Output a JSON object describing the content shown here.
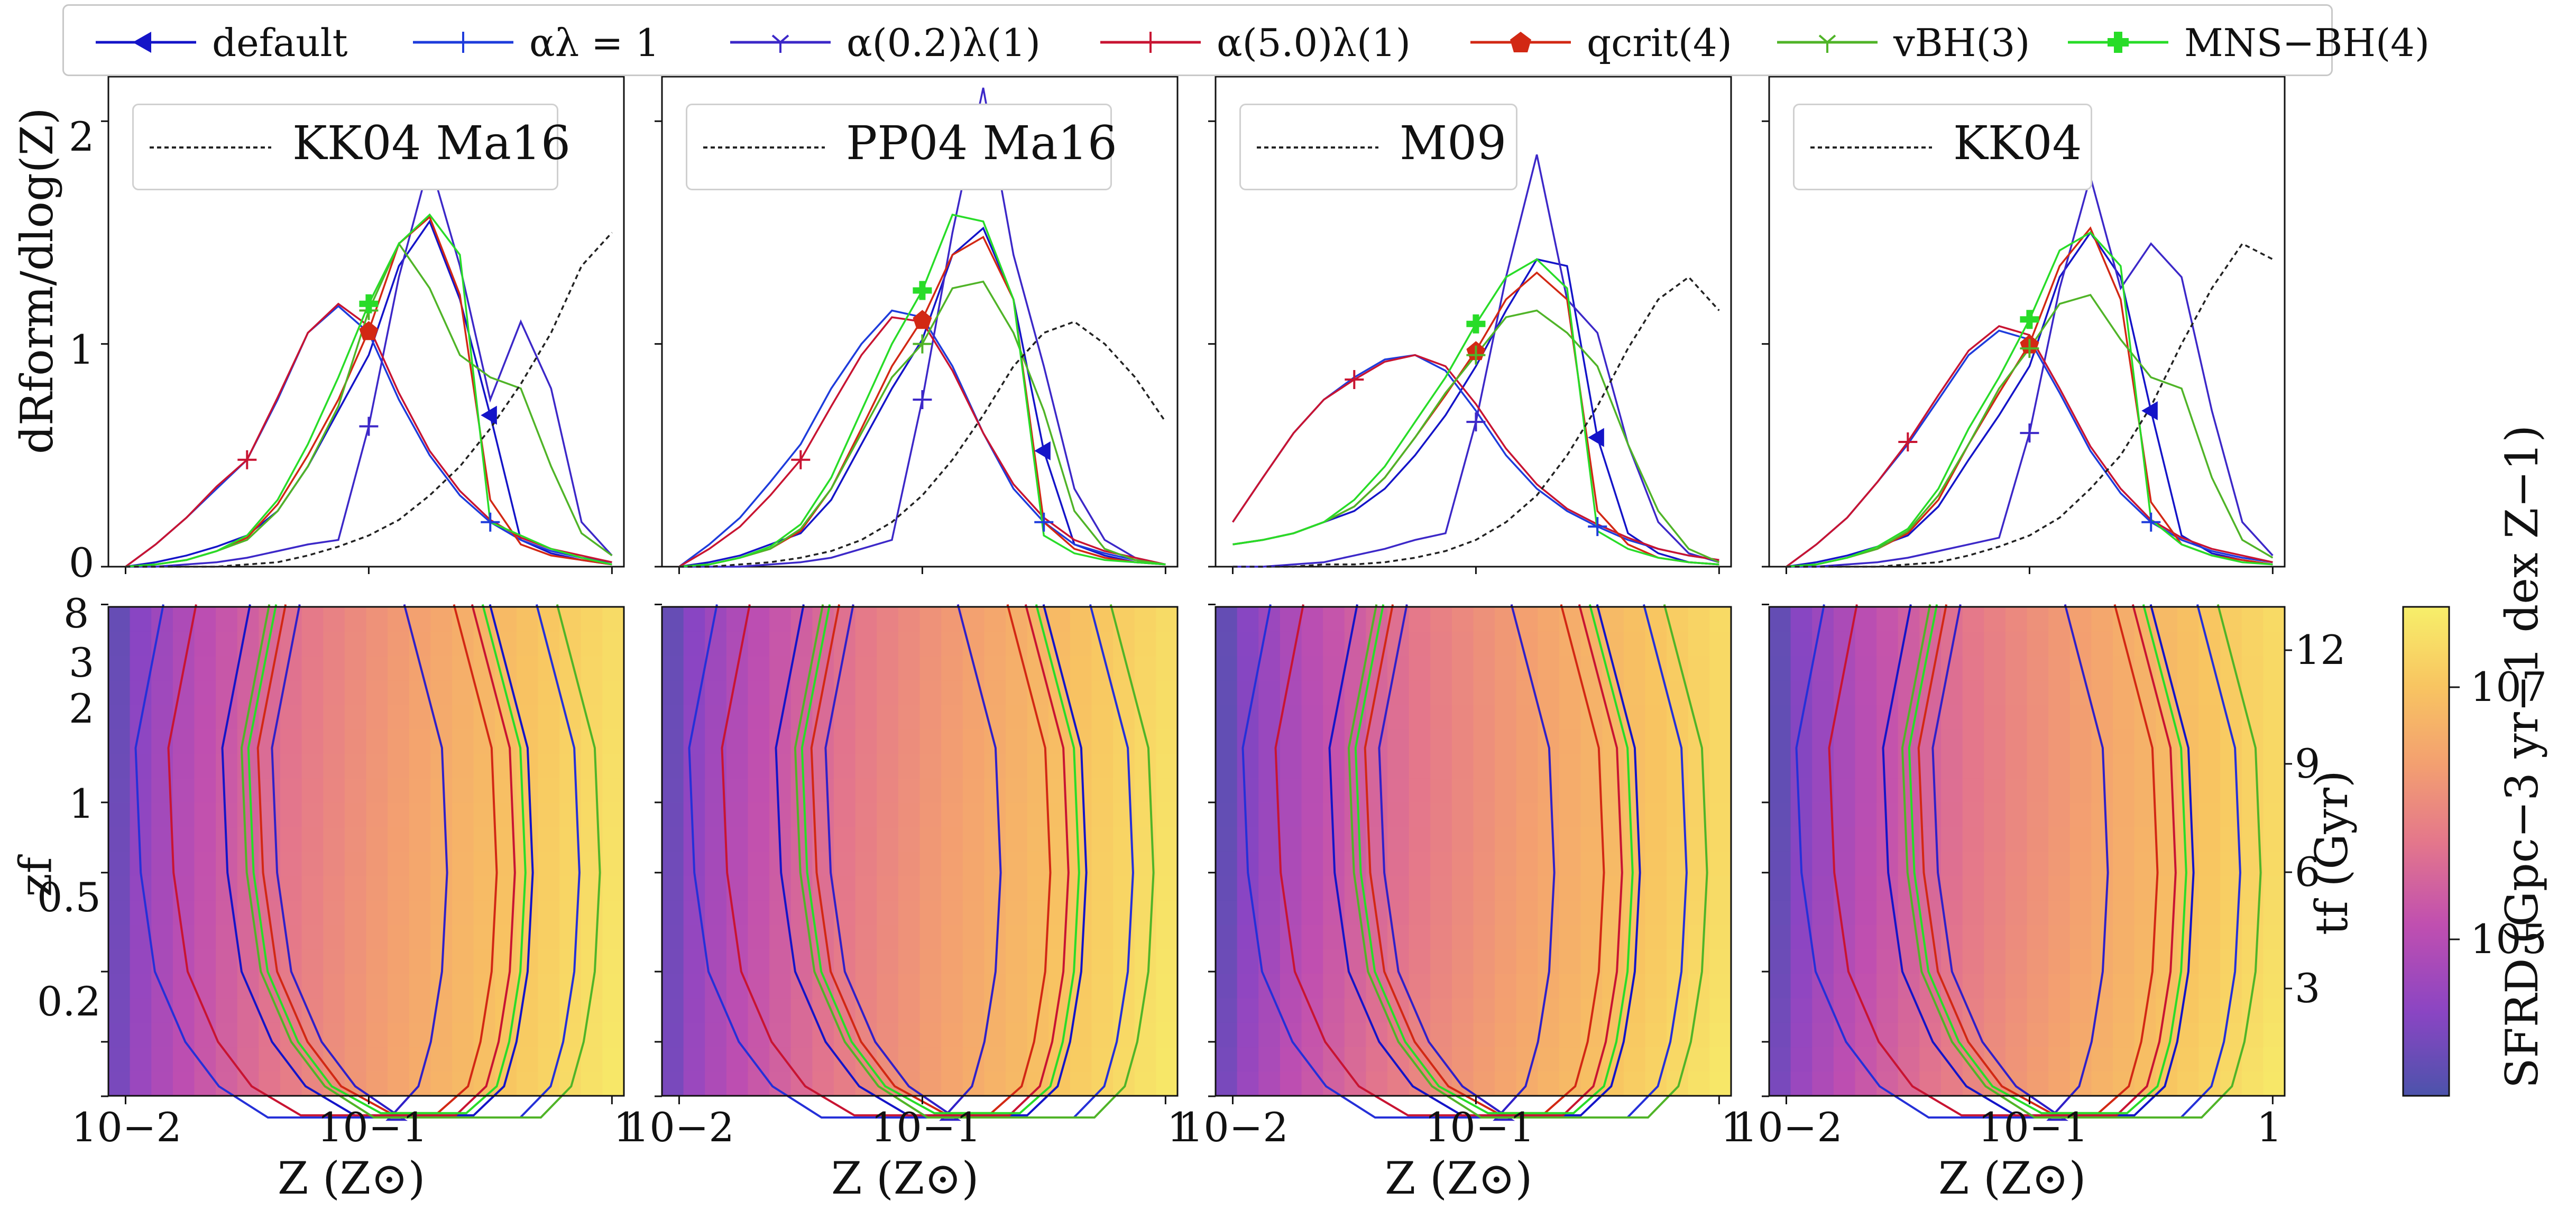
{
  "legend": {
    "items": [
      {
        "label": "default",
        "color": "#1414c8",
        "marker": "triangle-left"
      },
      {
        "label": "αλ = 1",
        "color": "#1e3cdc",
        "marker": "plus"
      },
      {
        "label": "α(0.2)λ(1)",
        "color": "#3c28c8",
        "marker": "tri-down"
      },
      {
        "label": "α(5.0)λ(1)",
        "color": "#c81432",
        "marker": "plus"
      },
      {
        "label": "qcrit(4)",
        "color": "#d22814",
        "marker": "pentagon"
      },
      {
        "label": "vBH(3)",
        "color": "#50b428",
        "marker": "tri-down"
      },
      {
        "label": "MNS−BH(4)",
        "color": "#28dc28",
        "marker": "plus-filled"
      }
    ]
  },
  "axes": {
    "top_ylabel": "dRform/dlog(Z)",
    "bottom_ylabel": "zf",
    "right_ylabel": "tf (Gyr)",
    "xlabel": "Z (Z⊙)",
    "colorbar_label": "SFRD (Gpc−3 yr−1 dex Z−1)",
    "top_yticks": [
      "0",
      "1",
      "2"
    ],
    "bottom_yticks": [
      "8",
      "3",
      "2",
      "1",
      "0.5",
      "0.2"
    ],
    "right_yticks": [
      "12",
      "9",
      "6",
      "3"
    ],
    "xticks": [
      "10−2",
      "10−1",
      "1"
    ],
    "colorbar_ticks": [
      "107",
      "105"
    ]
  },
  "panels": [
    {
      "name": "KK04_Ma16",
      "panel_label": "KK04 Ma16"
    },
    {
      "name": "PP04_Ma16",
      "panel_label": "PP04 Ma16"
    },
    {
      "name": "M09",
      "panel_label": "M09"
    },
    {
      "name": "KK04",
      "panel_label": "KK04"
    }
  ],
  "colors": {
    "cmap": [
      "#4c53ab",
      "#8a45c3",
      "#c04fb0",
      "#e4778b",
      "#f3a070",
      "#f8c561",
      "#f7ef6a"
    ],
    "dashed": "#222222"
  },
  "chart_data": {
    "type": "line",
    "xscale": "log",
    "xlim": [
      0.0085,
      1.12
    ],
    "top_ylim": [
      0,
      2.2
    ],
    "bottom_ylim_log1pz": [
      0.08,
      0.95
    ],
    "x": [
      0.01,
      0.0133,
      0.0178,
      0.0237,
      0.0316,
      0.0422,
      0.0562,
      0.075,
      0.1,
      0.133,
      0.178,
      0.237,
      0.316,
      0.422,
      0.562,
      0.75,
      1.0
    ],
    "marker_x": [
      0.32,
      0.32,
      0.1,
      0.032,
      0.1,
      0.1,
      0.1
    ],
    "panels": [
      {
        "name": "KK04 Ma16",
        "series": [
          {
            "name": "default",
            "values": [
              0,
              0.02,
              0.05,
              0.09,
              0.14,
              0.25,
              0.45,
              0.7,
              0.95,
              1.35,
              1.55,
              1.2,
              0.68,
              0.12,
              0.06,
              0.03,
              0.01
            ]
          },
          {
            "name": "αλ = 1",
            "values": [
              0,
              0.1,
              0.22,
              0.35,
              0.48,
              0.75,
              1.05,
              1.17,
              1.05,
              0.75,
              0.5,
              0.32,
              0.2,
              0.12,
              0.07,
              0.04,
              0.02
            ]
          },
          {
            "name": "α(0.2)λ(1)",
            "values": [
              0,
              0,
              0.01,
              0.02,
              0.04,
              0.07,
              0.1,
              0.12,
              0.63,
              1.3,
              1.82,
              1.35,
              0.75,
              1.1,
              0.8,
              0.2,
              0.05
            ]
          },
          {
            "name": "α(5.0)λ(1)",
            "values": [
              0,
              0.1,
              0.22,
              0.36,
              0.48,
              0.76,
              1.05,
              1.18,
              1.08,
              0.78,
              0.52,
              0.34,
              0.21,
              0.13,
              0.08,
              0.05,
              0.02
            ]
          },
          {
            "name": "qcrit(4)",
            "values": [
              0,
              0.01,
              0.03,
              0.07,
              0.13,
              0.28,
              0.5,
              0.75,
              1.06,
              1.45,
              1.57,
              1.22,
              0.3,
              0.1,
              0.05,
              0.03,
              0.01
            ]
          },
          {
            "name": "vBH(3)",
            "values": [
              0,
              0.01,
              0.03,
              0.07,
              0.12,
              0.25,
              0.45,
              0.72,
              1.15,
              1.45,
              1.25,
              0.95,
              0.85,
              0.8,
              0.45,
              0.15,
              0.05
            ]
          },
          {
            "name": "MNS−BH(4)",
            "values": [
              0,
              0.01,
              0.03,
              0.07,
              0.14,
              0.3,
              0.55,
              0.85,
              1.18,
              1.45,
              1.58,
              1.4,
              0.2,
              0.14,
              0.08,
              0.04,
              0.01
            ]
          },
          {
            "name": "KK04 Ma16",
            "values": [
              0,
              0,
              0,
              0,
              0.01,
              0.02,
              0.05,
              0.09,
              0.14,
              0.21,
              0.32,
              0.45,
              0.62,
              0.82,
              1.05,
              1.35,
              1.5
            ]
          }
        ]
      },
      {
        "name": "PP04 Ma16",
        "series": [
          {
            "name": "default",
            "values": [
              0,
              0.02,
              0.05,
              0.1,
              0.15,
              0.3,
              0.55,
              0.8,
              1.02,
              1.4,
              1.52,
              1.2,
              0.52,
              0.1,
              0.05,
              0.02,
              0.01
            ]
          },
          {
            "name": "αλ = 1",
            "values": [
              0,
              0.1,
              0.22,
              0.38,
              0.55,
              0.8,
              1.0,
              1.15,
              1.12,
              0.9,
              0.6,
              0.35,
              0.2,
              0.1,
              0.06,
              0.03,
              0.01
            ]
          },
          {
            "name": "α(0.2)λ(1)",
            "values": [
              0,
              0,
              0,
              0.01,
              0.02,
              0.04,
              0.08,
              0.12,
              0.75,
              1.5,
              2.15,
              1.4,
              0.9,
              0.35,
              0.12,
              0.04,
              0.01
            ]
          },
          {
            "name": "α(5.0)λ(1)",
            "values": [
              0,
              0.08,
              0.18,
              0.32,
              0.48,
              0.72,
              0.95,
              1.12,
              1.1,
              0.88,
              0.6,
              0.37,
              0.22,
              0.12,
              0.07,
              0.04,
              0.01
            ]
          },
          {
            "name": "qcrit(4)",
            "values": [
              0,
              0.01,
              0.04,
              0.08,
              0.16,
              0.35,
              0.62,
              0.9,
              1.11,
              1.4,
              1.48,
              1.2,
              0.2,
              0.08,
              0.04,
              0.02,
              0.01
            ]
          },
          {
            "name": "vBH(3)",
            "values": [
              0,
              0.01,
              0.04,
              0.08,
              0.17,
              0.35,
              0.6,
              0.85,
              1.0,
              1.25,
              1.28,
              1.05,
              0.7,
              0.25,
              0.08,
              0.03,
              0.01
            ]
          },
          {
            "name": "MNS−BH(4)",
            "values": [
              0,
              0.01,
              0.04,
              0.09,
              0.19,
              0.4,
              0.7,
              1.0,
              1.24,
              1.58,
              1.55,
              1.2,
              0.14,
              0.06,
              0.03,
              0.02,
              0.01
            ]
          },
          {
            "name": "PP04 Ma16",
            "values": [
              0,
              0,
              0.01,
              0.02,
              0.04,
              0.07,
              0.12,
              0.2,
              0.32,
              0.48,
              0.68,
              0.9,
              1.05,
              1.1,
              1.0,
              0.85,
              0.65
            ]
          }
        ]
      },
      {
        "name": "M09",
        "series": [
          {
            "name": "default",
            "values": [
              0.1,
              0.12,
              0.15,
              0.2,
              0.25,
              0.35,
              0.5,
              0.68,
              0.9,
              1.15,
              1.38,
              1.35,
              0.58,
              0.15,
              0.06,
              0.02,
              0.01
            ]
          },
          {
            "name": "αλ = 1",
            "values": [
              0.2,
              0.4,
              0.6,
              0.75,
              0.85,
              0.93,
              0.95,
              0.88,
              0.7,
              0.5,
              0.35,
              0.25,
              0.18,
              0.12,
              0.08,
              0.05,
              0.03
            ]
          },
          {
            "name": "α(0.2)λ(1)",
            "values": [
              0,
              0,
              0.01,
              0.02,
              0.05,
              0.08,
              0.12,
              0.15,
              0.65,
              1.3,
              1.85,
              1.2,
              1.05,
              0.55,
              0.2,
              0.06,
              0.02
            ]
          },
          {
            "name": "α(5.0)λ(1)",
            "values": [
              0.2,
              0.4,
              0.6,
              0.75,
              0.84,
              0.92,
              0.95,
              0.9,
              0.73,
              0.53,
              0.37,
              0.26,
              0.19,
              0.13,
              0.08,
              0.05,
              0.03
            ]
          },
          {
            "name": "qcrit(4)",
            "values": [
              0.1,
              0.12,
              0.15,
              0.2,
              0.27,
              0.4,
              0.58,
              0.77,
              0.97,
              1.2,
              1.32,
              1.2,
              0.25,
              0.1,
              0.04,
              0.02,
              0.01
            ]
          },
          {
            "name": "vBH(3)",
            "values": [
              0.1,
              0.12,
              0.15,
              0.2,
              0.27,
              0.4,
              0.58,
              0.78,
              0.95,
              1.12,
              1.15,
              1.05,
              0.9,
              0.55,
              0.25,
              0.08,
              0.02
            ]
          },
          {
            "name": "MNS−BH(4)",
            "values": [
              0.1,
              0.12,
              0.15,
              0.2,
              0.3,
              0.45,
              0.65,
              0.85,
              1.09,
              1.3,
              1.38,
              1.25,
              0.16,
              0.08,
              0.04,
              0.02,
              0.01
            ]
          },
          {
            "name": "M09",
            "values": [
              0,
              0,
              0,
              0.01,
              0.01,
              0.02,
              0.04,
              0.07,
              0.12,
              0.2,
              0.32,
              0.5,
              0.72,
              0.98,
              1.2,
              1.3,
              1.15
            ]
          }
        ]
      },
      {
        "name": "KK04",
        "series": [
          {
            "name": "default",
            "values": [
              0,
              0.02,
              0.05,
              0.09,
              0.14,
              0.27,
              0.48,
              0.68,
              0.9,
              1.3,
              1.5,
              1.3,
              0.7,
              0.14,
              0.06,
              0.03,
              0.01
            ]
          },
          {
            "name": "αλ = 1",
            "values": [
              0,
              0.1,
              0.22,
              0.38,
              0.55,
              0.75,
              0.95,
              1.06,
              1.02,
              0.78,
              0.52,
              0.33,
              0.2,
              0.12,
              0.07,
              0.04,
              0.02
            ]
          },
          {
            "name": "α(0.2)λ(1)",
            "values": [
              0,
              0,
              0.01,
              0.02,
              0.04,
              0.07,
              0.1,
              0.13,
              0.6,
              1.25,
              1.75,
              1.25,
              1.45,
              1.3,
              0.7,
              0.2,
              0.05
            ]
          },
          {
            "name": "α(5.0)λ(1)",
            "values": [
              0,
              0.1,
              0.22,
              0.38,
              0.56,
              0.77,
              0.97,
              1.08,
              1.04,
              0.8,
              0.54,
              0.35,
              0.21,
              0.13,
              0.08,
              0.05,
              0.02
            ]
          },
          {
            "name": "qcrit(4)",
            "values": [
              0,
              0.01,
              0.04,
              0.08,
              0.15,
              0.3,
              0.55,
              0.78,
              1.0,
              1.35,
              1.52,
              1.2,
              0.29,
              0.1,
              0.05,
              0.03,
              0.01
            ]
          },
          {
            "name": "vBH(3)",
            "values": [
              0,
              0.01,
              0.04,
              0.08,
              0.16,
              0.32,
              0.55,
              0.8,
              0.98,
              1.18,
              1.22,
              1.02,
              0.85,
              0.8,
              0.4,
              0.12,
              0.04
            ]
          },
          {
            "name": "MNS−BH(4)",
            "values": [
              0,
              0.01,
              0.04,
              0.09,
              0.17,
              0.35,
              0.62,
              0.85,
              1.11,
              1.42,
              1.5,
              1.35,
              0.21,
              0.1,
              0.05,
              0.02,
              0.01
            ]
          },
          {
            "name": "KK04",
            "values": [
              0,
              0,
              0,
              0,
              0.01,
              0.02,
              0.05,
              0.09,
              0.14,
              0.22,
              0.35,
              0.5,
              0.72,
              1.0,
              1.25,
              1.45,
              1.38
            ]
          }
        ]
      }
    ]
  }
}
